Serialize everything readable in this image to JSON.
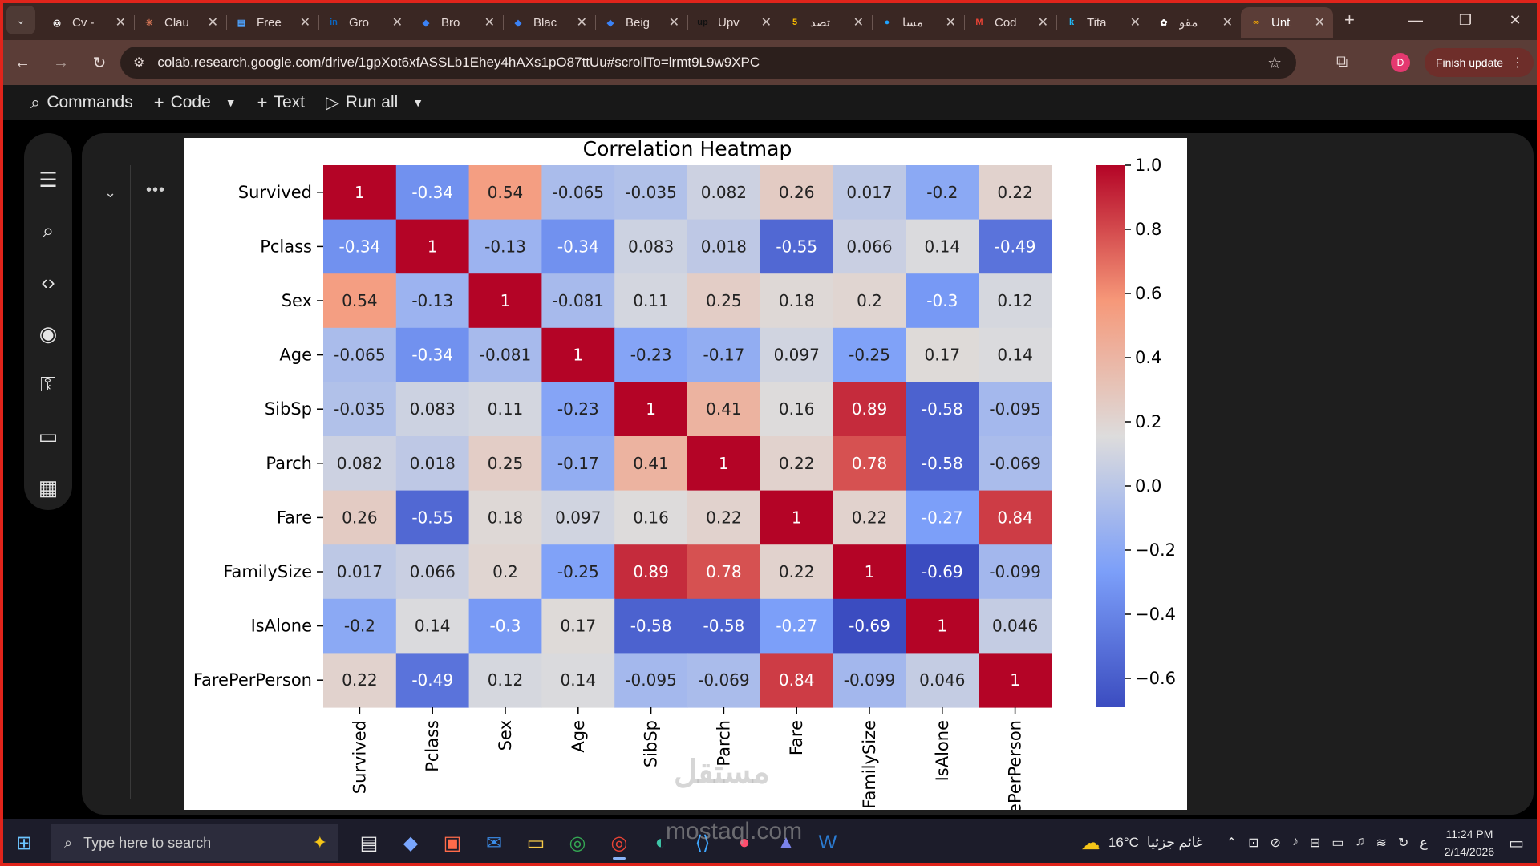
{
  "browser": {
    "tabs": [
      {
        "label": "Cv -",
        "icon": "chrome-icon",
        "color": "#ffffff"
      },
      {
        "label": "Clau",
        "icon": "claude-icon",
        "color": "#d97757"
      },
      {
        "label": "Free",
        "icon": "document-icon",
        "color": "#4da3ff"
      },
      {
        "label": "Gro",
        "icon": "linkedin-icon",
        "color": "#0a66c2"
      },
      {
        "label": "Bro",
        "icon": "copilot-icon",
        "color": "#3b82f6"
      },
      {
        "label": "Blac",
        "icon": "copilot-icon",
        "color": "#3b82f6"
      },
      {
        "label": "Beig",
        "icon": "copilot-icon",
        "color": "#3b82f6"
      },
      {
        "label": "Upv",
        "icon": "upwork-icon",
        "color": "#111111"
      },
      {
        "label": "تصد",
        "icon": "number-5-icon",
        "color": "#f5b800"
      },
      {
        "label": "مسا",
        "icon": "circle-icon",
        "color": "#1fa3ff"
      },
      {
        "label": "Cod",
        "icon": "gmail-icon",
        "color": "#ea4335"
      },
      {
        "label": "Tita",
        "icon": "kaggle-icon",
        "color": "#20beff"
      },
      {
        "label": "مقو",
        "icon": "openai-icon",
        "color": "#ffffff"
      },
      {
        "label": "Unt",
        "icon": "colab-icon",
        "color": "#f9ab00",
        "active": true
      }
    ],
    "url": "colab.research.google.com/drive/1gpXot6xfASSLb1Ehey4hAXs1pO87ttUu#scrollTo=lrmt9L9w9XPC",
    "profile_initial": "D",
    "finish_update": "Finish update"
  },
  "colab": {
    "commands": "Commands",
    "code": "Code",
    "text": "Text",
    "run_all": "Run all"
  },
  "chart_data": {
    "type": "heatmap",
    "title": "Correlation Heatmap",
    "labels": [
      "Survived",
      "Pclass",
      "Sex",
      "Age",
      "SibSp",
      "Parch",
      "Fare",
      "FamilySize",
      "IsAlone",
      "FarePerPerson"
    ],
    "x_tick_labels": [
      "Survived",
      "Pclass",
      "Sex",
      "Age",
      "SibSp",
      "Parch",
      "Fare",
      "FamilySize",
      "IsAlone",
      "ePerPerson"
    ],
    "matrix": [
      [
        1,
        -0.34,
        0.54,
        -0.065,
        -0.035,
        0.082,
        0.26,
        0.017,
        -0.2,
        0.22
      ],
      [
        -0.34,
        1,
        -0.13,
        -0.34,
        0.083,
        0.018,
        -0.55,
        0.066,
        0.14,
        -0.49
      ],
      [
        0.54,
        -0.13,
        1,
        -0.081,
        0.11,
        0.25,
        0.18,
        0.2,
        -0.3,
        0.12
      ],
      [
        -0.065,
        -0.34,
        -0.081,
        1,
        -0.23,
        -0.17,
        0.097,
        -0.25,
        0.17,
        0.14
      ],
      [
        -0.035,
        0.083,
        0.11,
        -0.23,
        1,
        0.41,
        0.16,
        0.89,
        -0.58,
        -0.095
      ],
      [
        0.082,
        0.018,
        0.25,
        -0.17,
        0.41,
        1,
        0.22,
        0.78,
        -0.58,
        -0.069
      ],
      [
        0.26,
        -0.55,
        0.18,
        0.097,
        0.16,
        0.22,
        1,
        0.22,
        -0.27,
        0.84
      ],
      [
        0.017,
        0.066,
        0.2,
        -0.25,
        0.89,
        0.78,
        0.22,
        1,
        -0.69,
        -0.099
      ],
      [
        -0.2,
        0.14,
        -0.3,
        0.17,
        -0.58,
        -0.58,
        -0.27,
        -0.69,
        1,
        0.046
      ],
      [
        0.22,
        -0.49,
        0.12,
        0.14,
        -0.095,
        -0.069,
        0.84,
        -0.099,
        0.046,
        1
      ]
    ],
    "colormap": "coolwarm",
    "vmin": -0.69,
    "vmax": 1.0,
    "colorbar_ticks": [
      "1.0",
      "0.8",
      "0.6",
      "0.4",
      "0.2",
      "0.0",
      "−0.2",
      "−0.4",
      "−0.6"
    ],
    "colorbar_tick_values": [
      1.0,
      0.8,
      0.6,
      0.4,
      0.2,
      0.0,
      -0.2,
      -0.4,
      -0.6
    ],
    "annotated": true
  },
  "watermark": {
    "arabic": "مستقل",
    "latin": "mostaql.com"
  },
  "taskbar": {
    "search_placeholder": "Type here to search",
    "weather_temp": "16°C",
    "weather_text": "غائم جزئيا",
    "lang": "ع",
    "time": "11:24 PM",
    "date": "2/14/2026"
  }
}
